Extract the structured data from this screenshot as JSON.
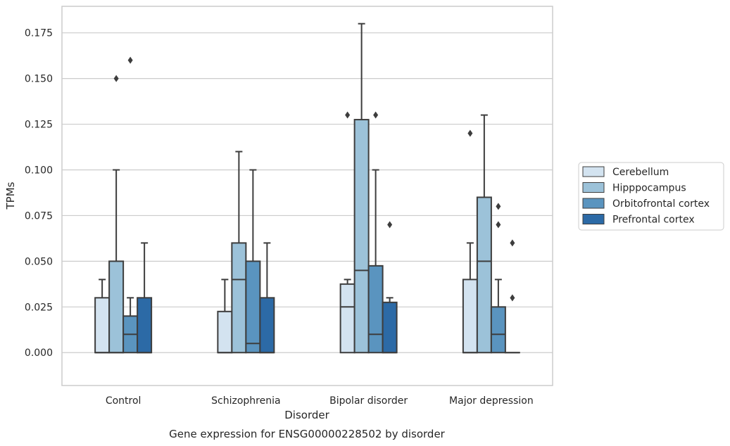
{
  "chart_data": {
    "type": "box",
    "title": "Gene expression for ENSG00000228502 by disorder",
    "xlabel": "Disorder",
    "ylabel": "TPMs",
    "ylim": [
      -0.018,
      0.1895
    ],
    "yticks": [
      "0.000",
      "0.025",
      "0.050",
      "0.075",
      "0.100",
      "0.125",
      "0.150",
      "0.175"
    ],
    "ytick_values": [
      0,
      0.025,
      0.05,
      0.075,
      0.1,
      0.125,
      0.15,
      0.175
    ],
    "grid": "horizontal",
    "legend_position": "right",
    "categories": [
      "Control",
      "Schizophrenia",
      "Bipolar disorder",
      "Major depression"
    ],
    "series": [
      {
        "name": "Cerebellum",
        "color": "#d3e3f0",
        "boxes": [
          {
            "whislo": 0,
            "q1": 0,
            "med": 0,
            "q3": 0.03,
            "whishi": 0.04,
            "fliers": []
          },
          {
            "whislo": 0,
            "q1": 0,
            "med": 0,
            "q3": 0.0225,
            "whishi": 0.04,
            "fliers": []
          },
          {
            "whislo": 0,
            "q1": 0,
            "med": 0.025,
            "q3": 0.0375,
            "whishi": 0.04,
            "fliers": [
              0.13
            ]
          },
          {
            "whislo": 0,
            "q1": 0,
            "med": 0,
            "q3": 0.04,
            "whishi": 0.06,
            "fliers": [
              0.12
            ]
          }
        ]
      },
      {
        "name": "Hipppocampus",
        "color": "#9cc2d9",
        "boxes": [
          {
            "whislo": 0,
            "q1": 0,
            "med": 0,
            "q3": 0.05,
            "whishi": 0.1,
            "fliers": [
              0.15
            ]
          },
          {
            "whislo": 0,
            "q1": 0,
            "med": 0.04,
            "q3": 0.06,
            "whishi": 0.11,
            "fliers": []
          },
          {
            "whislo": 0,
            "q1": 0,
            "med": 0.045,
            "q3": 0.1275,
            "whishi": 0.18,
            "fliers": []
          },
          {
            "whislo": 0,
            "q1": 0,
            "med": 0.05,
            "q3": 0.085,
            "whishi": 0.13,
            "fliers": []
          }
        ]
      },
      {
        "name": "Orbitofrontal cortex",
        "color": "#5a94bf",
        "boxes": [
          {
            "whislo": 0,
            "q1": 0,
            "med": 0.01,
            "q3": 0.02,
            "whishi": 0.03,
            "fliers": [
              0.16
            ]
          },
          {
            "whislo": 0,
            "q1": 0,
            "med": 0.005,
            "q3": 0.05,
            "whishi": 0.1,
            "fliers": []
          },
          {
            "whislo": 0,
            "q1": 0,
            "med": 0.01,
            "q3": 0.0475,
            "whishi": 0.1,
            "fliers": [
              0.13
            ]
          },
          {
            "whislo": 0,
            "q1": 0,
            "med": 0.01,
            "q3": 0.025,
            "whishi": 0.04,
            "fliers": [
              0.08,
              0.07
            ]
          }
        ]
      },
      {
        "name": "Prefrontal cortex",
        "color": "#2c6aa6",
        "boxes": [
          {
            "whislo": 0,
            "q1": 0,
            "med": 0,
            "q3": 0.03,
            "whishi": 0.06,
            "fliers": []
          },
          {
            "whislo": 0,
            "q1": 0,
            "med": 0,
            "q3": 0.03,
            "whishi": 0.06,
            "fliers": []
          },
          {
            "whislo": 0,
            "q1": 0,
            "med": 0,
            "q3": 0.0275,
            "whishi": 0.03,
            "fliers": [
              0.07
            ]
          },
          {
            "whislo": 0,
            "q1": 0,
            "med": 0,
            "q3": 0,
            "whishi": 0,
            "fliers": [
              0.06,
              0.03
            ]
          }
        ]
      }
    ]
  }
}
